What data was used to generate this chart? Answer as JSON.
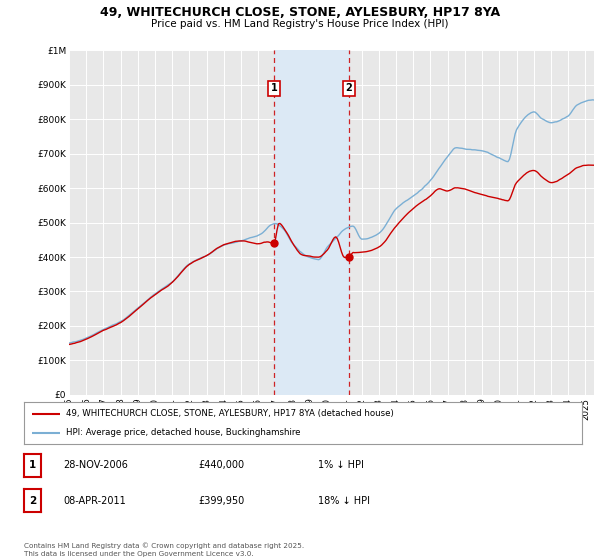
{
  "title_line1": "49, WHITECHURCH CLOSE, STONE, AYLESBURY, HP17 8YA",
  "title_line2": "Price paid vs. HM Land Registry's House Price Index (HPI)",
  "background_color": "#ffffff",
  "plot_background_color": "#e8e8e8",
  "grid_color": "#ffffff",
  "hpi_color": "#7bafd4",
  "price_color": "#cc0000",
  "shade_color": "#dce9f5",
  "marker1_x": 2006.91,
  "marker1_price": 440000,
  "marker2_x": 2011.27,
  "marker2_price": 399950,
  "legend_label1": "49, WHITECHURCH CLOSE, STONE, AYLESBURY, HP17 8YA (detached house)",
  "legend_label2": "HPI: Average price, detached house, Buckinghamshire",
  "table_row1": [
    "1",
    "28-NOV-2006",
    "£440,000",
    "1% ↓ HPI"
  ],
  "table_row2": [
    "2",
    "08-APR-2011",
    "£399,950",
    "18% ↓ HPI"
  ],
  "footer": "Contains HM Land Registry data © Crown copyright and database right 2025.\nThis data is licensed under the Open Government Licence v3.0.",
  "ylim": [
    0,
    1000000
  ],
  "yticks": [
    0,
    100000,
    200000,
    300000,
    400000,
    500000,
    600000,
    700000,
    800000,
    900000,
    1000000
  ],
  "ytick_labels": [
    "£0",
    "£100K",
    "£200K",
    "£300K",
    "£400K",
    "£500K",
    "£600K",
    "£700K",
    "£800K",
    "£900K",
    "£1M"
  ],
  "xlim_start": 1995.0,
  "xlim_end": 2025.5
}
